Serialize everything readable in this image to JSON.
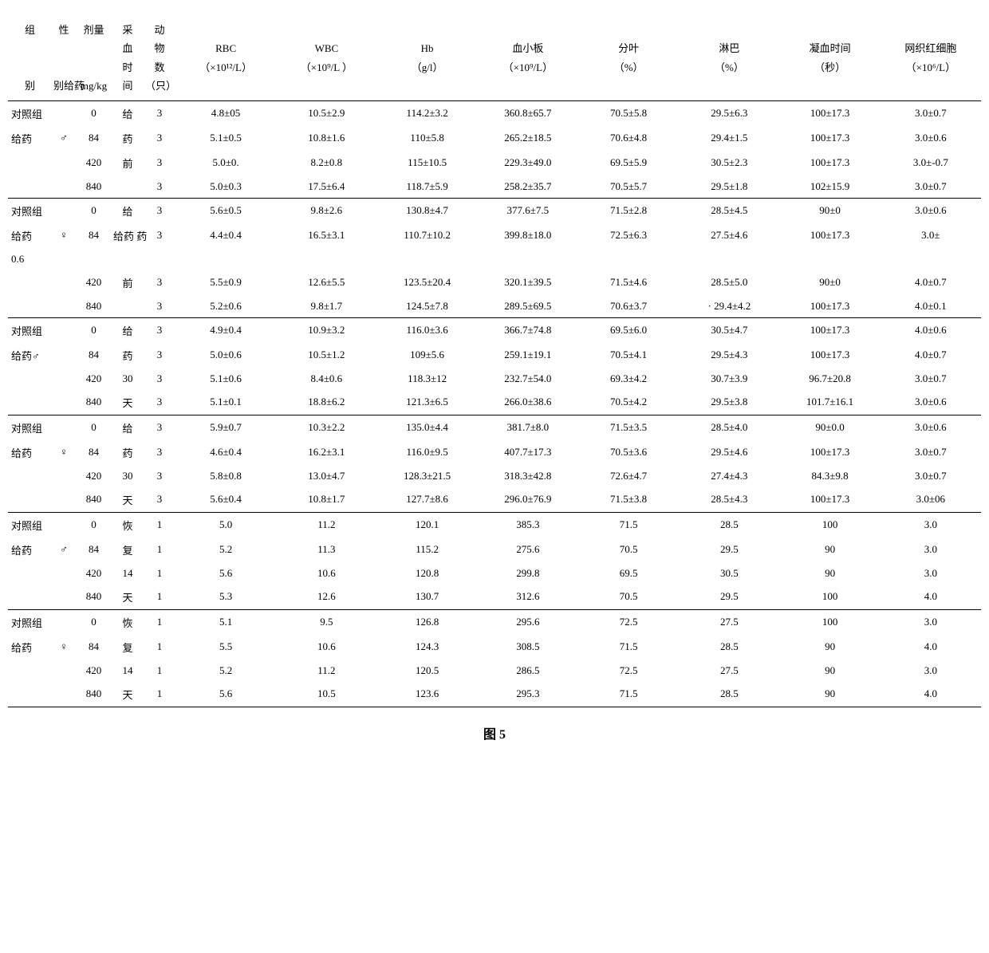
{
  "headers": {
    "h0": "组别",
    "h1": "性别给药",
    "h2": "剂量",
    "h2unit": "mg/kg",
    "h3": "采血时间",
    "h4": "动物数（只）",
    "rbc": "RBC",
    "rbc_u": "（×10¹²/L）",
    "wbc": "WBC",
    "wbc_u": "（×10⁹/L ）",
    "hb": "Hb",
    "hb_u": "（g/l）",
    "plt": "血小板",
    "plt_u": "（×10⁹/L）",
    "seg": "分叶",
    "seg_u": "（%）",
    "lym": "淋巴",
    "lym_u": "（%）",
    "ct": "凝血时间",
    "ct_u": "（秒）",
    "ret": "网织红细胞",
    "ret_u": "（×10⁶/L）"
  },
  "caption": "图 5",
  "row0": {
    "g": "对照组",
    "sex": "",
    "dose": "0",
    "time": "给",
    "n": "3",
    "rbc": "4.8±05",
    "wbc": "10.5±2.9",
    "hb": "114.2±3.2",
    "plt": "360.8±65.7",
    "seg": "70.5±5.8",
    "lym": "29.5±6.3",
    "ct": "100±17.3",
    "ret": "3.0±0.7"
  },
  "row1": {
    "g": " 给药",
    "sex": "♂",
    "dose": "84",
    "time": "药",
    "n": "3",
    "rbc": "5.1±0.5",
    "wbc": "10.8±1.6",
    "hb": "110±5.8",
    "plt": "265.2±18.5",
    "seg": "70.6±4.8",
    "lym": "29.4±1.5",
    "ct": "100±17.3",
    "ret": "3.0±0.6"
  },
  "row2": {
    "g": "",
    "sex": "",
    "dose": "420",
    "time": "前",
    "n": "3",
    "rbc": "5.0±0.",
    "wbc": "8.2±0.8",
    "hb": "115±10.5",
    "plt": "229.3±49.0",
    "seg": "69.5±5.9",
    "lym": "30.5±2.3",
    "ct": "100±17.3",
    "ret": "3.0±-0.7"
  },
  "row3": {
    "g": "",
    "sex": "",
    "dose": "840",
    "time": "",
    "n": "3",
    "rbc": "5.0±0.3",
    "wbc": "17.5±6.4",
    "hb": "118.7±5.9",
    "plt": "258.2±35.7",
    "seg": "70.5±5.7",
    "lym": "29.5±1.8",
    "ct": "102±15.9",
    "ret": "3.0±0.7"
  },
  "row4": {
    "g": "对照组",
    "sex": "",
    "dose": "0",
    "time": "给",
    "n": "3",
    "rbc": "5.6±0.5",
    "wbc": "9.8±2.6",
    "hb": "130.8±4.7",
    "plt": "377.6±7.5",
    "seg": "71.5±2.8",
    "lym": "28.5±4.5",
    "ct": "90±0",
    "ret": "3.0±0.6"
  },
  "row5": {
    "g": "  给药",
    "sex": "♀",
    "dose": "84",
    "time": "给药 药",
    "n": "3",
    "rbc": "4.4±0.4",
    "wbc": "16.5±3.1",
    "hb": "110.7±10.2",
    "plt": "399.8±18.0",
    "seg": "72.5±6.3",
    "lym": "27.5±4.6",
    "ct": "100±17.3",
    "ret": "3.0±"
  },
  "row5b": {
    "g": "0.6"
  },
  "row6": {
    "g": "",
    "sex": "",
    "dose": "420",
    "time": "前",
    "n": "3",
    "rbc": "5.5±0.9",
    "wbc": "12.6±5.5",
    "hb": "123.5±20.4",
    "plt": "320.1±39.5",
    "seg": "71.5±4.6",
    "lym": "28.5±5.0",
    "ct": "90±0",
    "ret": "4.0±0.7"
  },
  "row7": {
    "g": "",
    "sex": "",
    "dose": "840",
    "time": "",
    "n": "3",
    "rbc": "5.2±0.6",
    "wbc": "9.8±1.7",
    "hb": "124.5±7.8",
    "plt": "289.5±69.5",
    "seg": "70.6±3.7",
    "lym": "·  29.4±4.2",
    "ct": "100±17.3",
    "ret": "4.0±0.1"
  },
  "row8": {
    "g": "对照组",
    "sex": "",
    "dose": "0",
    "time": "给",
    "n": "3",
    "rbc": "4.9±0.4",
    "wbc": "10.9±3.2",
    "hb": "116.0±3.6",
    "plt": "366.7±74.8",
    "seg": "69.5±6.0",
    "lym": "30.5±4.7",
    "ct": "100±17.3",
    "ret": "4.0±0.6"
  },
  "row9": {
    "g": "  给药♂",
    "sex": "",
    "dose": "84",
    "time": "药",
    "n": "3",
    "rbc": "5.0±0.6",
    "wbc": "10.5±1.2",
    "hb": "109±5.6",
    "plt": "259.1±19.1",
    "seg": "70.5±4.1",
    "lym": "29.5±4.3",
    "ct": "100±17.3",
    "ret": "4.0±0.7"
  },
  "row10": {
    "g": "",
    "sex": "",
    "dose": "420",
    "time": "30",
    "n": "3",
    "rbc": "5.1±0.6",
    "wbc": "8.4±0.6",
    "hb": "118.3±12",
    "plt": "232.7±54.0",
    "seg": "69.3±4.2",
    "lym": "30.7±3.9",
    "ct": "96.7±20.8",
    "ret": "3.0±0.7"
  },
  "row11": {
    "g": "",
    "sex": "",
    "dose": "840",
    "time": "天",
    "n": "3",
    "rbc": "5.1±0.1",
    "wbc": "18.8±6.2",
    "hb": "121.3±6.5",
    "plt": "266.0±38.6",
    "seg": "70.5±4.2",
    "lym": "29.5±3.8",
    "ct": "101.7±16.1",
    "ret": "3.0±0.6"
  },
  "row12": {
    "g": "对照组",
    "sex": "",
    "dose": "0",
    "time": "给",
    "n": "3",
    "rbc": "5.9±0.7",
    "wbc": "10.3±2.2",
    "hb": "135.0±4.4",
    "plt": "381.7±8.0",
    "seg": "71.5±3.5",
    "lym": "28.5±4.0",
    "ct": "90±0.0",
    "ret": "3.0±0.6"
  },
  "row13": {
    "g": "  给药",
    "sex": "♀",
    "dose": "84",
    "time": "药",
    "n": "3",
    "rbc": "4.6±0.4",
    "wbc": "16.2±3.1",
    "hb": "116.0±9.5",
    "plt": "407.7±17.3",
    "seg": "70.5±3.6",
    "lym": "29.5±4.6",
    "ct": "100±17.3",
    "ret": "3.0±0.7"
  },
  "row14": {
    "g": "",
    "sex": "",
    "dose": "420",
    "time": "30",
    "n": "3",
    "rbc": "5.8±0.8",
    "wbc": "13.0±4.7",
    "hb": "128.3±21.5",
    "plt": "318.3±42.8",
    "seg": "72.6±4.7",
    "lym": "27.4±4.3",
    "ct": "84.3±9.8",
    "ret": "3.0±0.7"
  },
  "row15": {
    "g": "",
    "sex": "",
    "dose": "840",
    "time": "天",
    "n": "3",
    "rbc": "5.6±0.4",
    "wbc": "10.8±1.7",
    "hb": "127.7±8.6",
    "plt": "296.0±76.9",
    "seg": "71.5±3.8",
    "lym": "28.5±4.3",
    "ct": "100±17.3",
    "ret": "3.0±06"
  },
  "row16": {
    "g": "对照组",
    "sex": "",
    "dose": "0",
    "time": "恢",
    "n": "1",
    "rbc": "5.0",
    "wbc": "11.2",
    "hb": "120.1",
    "plt": "385.3",
    "seg": "71.5",
    "lym": "28.5",
    "ct": "100",
    "ret": "3.0"
  },
  "row17": {
    "g": "  给药",
    "sex": "♂",
    "dose": "84",
    "time": "复",
    "n": "1",
    "rbc": "5.2",
    "wbc": "11.3",
    "hb": "115.2",
    "plt": "275.6",
    "seg": "70.5",
    "lym": "29.5",
    "ct": "90",
    "ret": "3.0"
  },
  "row18": {
    "g": "",
    "sex": "",
    "dose": "420",
    "time": "14",
    "n": "1",
    "rbc": "5.6",
    "wbc": "10.6",
    "hb": "120.8",
    "plt": "299.8",
    "seg": "69.5",
    "lym": "30.5",
    "ct": "90",
    "ret": "3.0"
  },
  "row19": {
    "g": "",
    "sex": "",
    "dose": "840",
    "time": "天",
    "n": "1",
    "rbc": "5.3",
    "wbc": "12.6",
    "hb": "130.7",
    "plt": "312.6",
    "seg": "70.5",
    "lym": "29.5",
    "ct": "100",
    "ret": "4.0"
  },
  "row20": {
    "g": "对照组",
    "sex": "",
    "dose": "0",
    "time": "恢",
    "n": "1",
    "rbc": "5.1",
    "wbc": "9.5",
    "hb": "126.8",
    "plt": "295.6",
    "seg": "72.5",
    "lym": "27.5",
    "ct": "100",
    "ret": "3.0"
  },
  "row21": {
    "g": "给药",
    "sex": "♀",
    "dose": "84",
    "time": "复",
    "n": "1",
    "rbc": "5.5",
    "wbc": "10.6",
    "hb": "124.3",
    "plt": "308.5",
    "seg": "71.5",
    "lym": "28.5",
    "ct": "90",
    "ret": "4.0"
  },
  "row22": {
    "g": "",
    "sex": "",
    "dose": "420",
    "time": "14",
    "n": "1",
    "rbc": "5.2",
    "wbc": "11.2",
    "hb": "120.5",
    "plt": "286.5",
    "seg": "72.5",
    "lym": "27.5",
    "ct": "90",
    "ret": "3.0"
  },
  "row23": {
    "g": "",
    "sex": "",
    "dose": "840",
    "time": "天",
    "n": "1",
    "rbc": "5.6",
    "wbc": "10.5",
    "hb": "123.6",
    "plt": "295.3",
    "seg": "71.5",
    "lym": "28.5",
    "ct": "90",
    "ret": "4.0"
  }
}
